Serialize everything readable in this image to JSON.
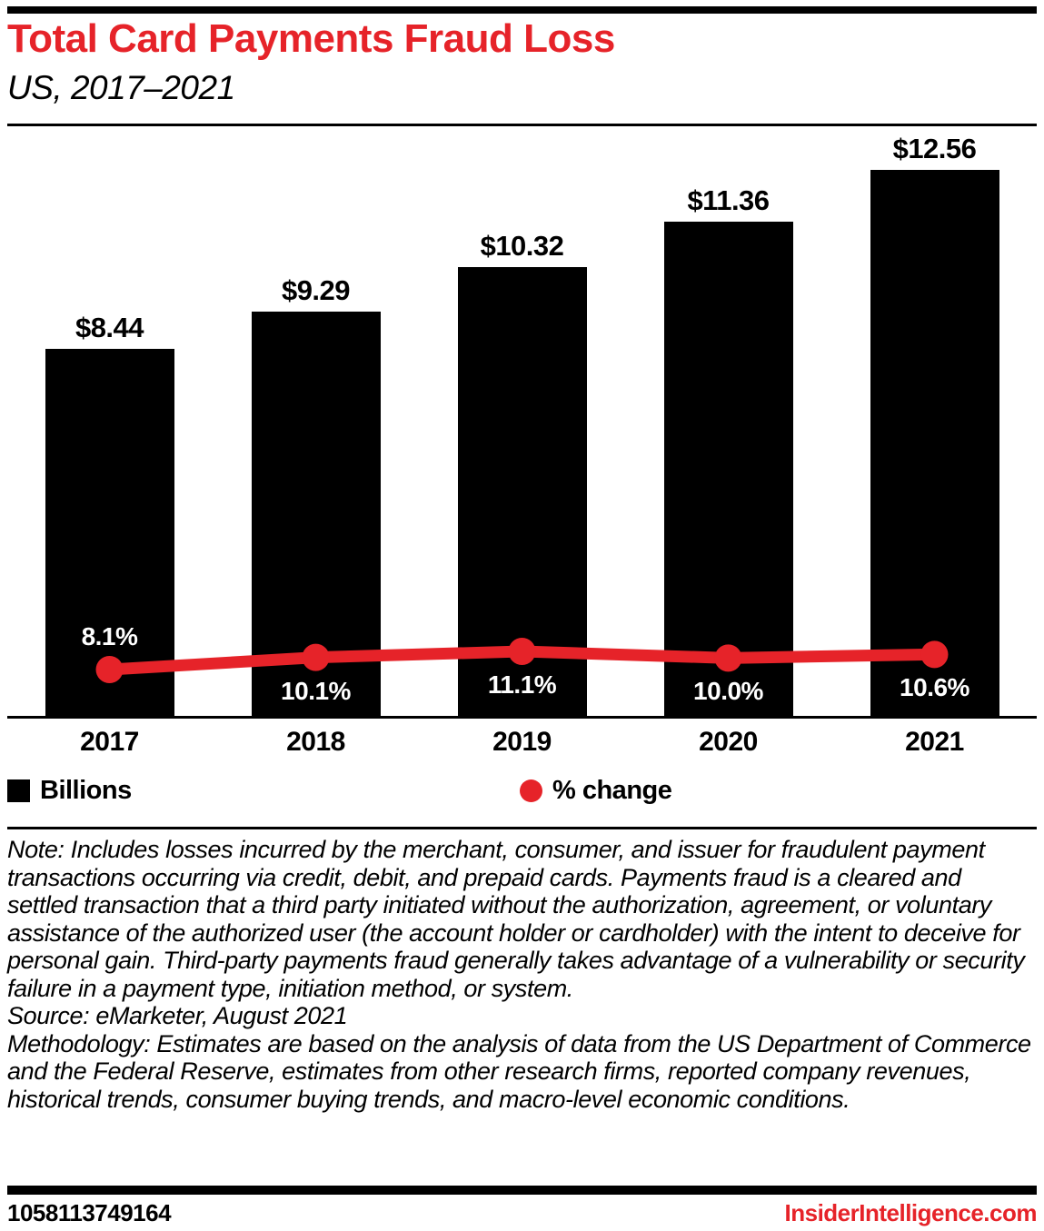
{
  "header": {
    "title": "Total Card Payments Fraud Loss",
    "subtitle": "US, 2017–2021"
  },
  "chart_data": {
    "type": "bar",
    "categories": [
      "2017",
      "2018",
      "2019",
      "2020",
      "2021"
    ],
    "series": [
      {
        "name": "Billions",
        "type": "bar",
        "color": "#000000",
        "values": [
          8.44,
          9.29,
          10.32,
          11.36,
          12.56
        ],
        "labels": [
          "$8.44",
          "$9.29",
          "$10.32",
          "$11.36",
          "$12.56"
        ]
      },
      {
        "name": "% change",
        "type": "line",
        "color": "#e62329",
        "values": [
          8.1,
          10.1,
          11.1,
          10.0,
          10.6
        ],
        "labels": [
          "8.1%",
          "10.1%",
          "11.1%",
          "10.0%",
          "10.6%"
        ]
      }
    ],
    "title": "Total Card Payments Fraud Loss",
    "subtitle": "US, 2017–2021",
    "xlabel": "",
    "ylabel": "",
    "grid": false,
    "legend_position": "bottom",
    "bar_value_unit": "billions of US dollars"
  },
  "legend": {
    "bars_label": "Billions",
    "line_label": "% change"
  },
  "footnotes": {
    "note": "Note: Includes losses incurred by the merchant, consumer, and issuer for fraudulent payment transactions occurring via credit, debit, and prepaid cards. Payments fraud is a cleared and settled transaction that a third party initiated without the authorization, agreement, or voluntary assistance of the authorized user (the account holder or cardholder) with the intent to deceive for personal gain. Third-party payments fraud generally takes advantage of a vulnerability or security failure in a payment type, initiation method, or system.",
    "source": "Source: eMarketer, August 2021",
    "methodology": "Methodology: Estimates are based on the analysis of data from the US Department of Commerce and the Federal Reserve, estimates from other research firms, reported company revenues, historical trends, consumer buying trends, and macro-level economic conditions."
  },
  "footer": {
    "chart_id": "1058113749164",
    "brand": "InsiderIntelligence.com"
  },
  "colors": {
    "accent_red": "#e62329",
    "bar_black": "#000000",
    "background": "#ffffff"
  }
}
